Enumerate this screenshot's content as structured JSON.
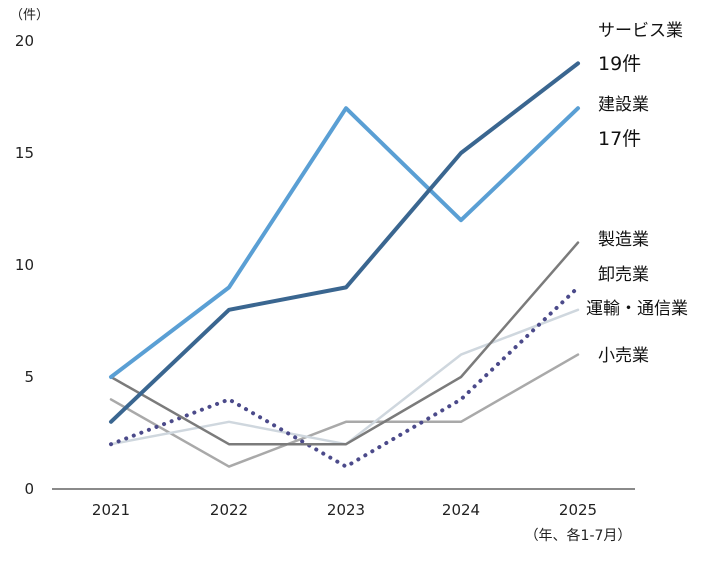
{
  "chart_data": {
    "type": "line",
    "y_unit": "（件）",
    "x_note": "（年、各1-7月）",
    "categories": [
      "2021",
      "2022",
      "2023",
      "2024",
      "2025"
    ],
    "y_ticks": [
      "0",
      "5",
      "10",
      "15",
      "20"
    ],
    "ylim": [
      0,
      20
    ],
    "grid": false,
    "series": [
      {
        "name": "サービス業",
        "count_label": "19件",
        "color": "#3a6690",
        "width": 4,
        "dash": "",
        "values": [
          3,
          8,
          9,
          15,
          19
        ]
      },
      {
        "name": "建設業",
        "count_label": "17件",
        "color": "#5a9fd4",
        "width": 4,
        "dash": "",
        "values": [
          5,
          9,
          17,
          12,
          17
        ]
      },
      {
        "name": "製造業",
        "color": "#7b7b7b",
        "width": 2.5,
        "dash": "",
        "values": [
          5,
          2,
          2,
          5,
          11
        ]
      },
      {
        "name": "卸売業",
        "color": "#4b4a8a",
        "width": 3.5,
        "dash": "dot",
        "values": [
          2,
          4,
          1,
          4,
          9
        ]
      },
      {
        "name": "運輸・通信業",
        "color": "#cfd7de",
        "width": 2.5,
        "dash": "",
        "values": [
          2,
          3,
          2,
          6,
          8
        ]
      },
      {
        "name": "小売業",
        "color": "#a9a9a9",
        "width": 2.5,
        "dash": "",
        "values": [
          4,
          1,
          3,
          3,
          6
        ]
      }
    ]
  }
}
